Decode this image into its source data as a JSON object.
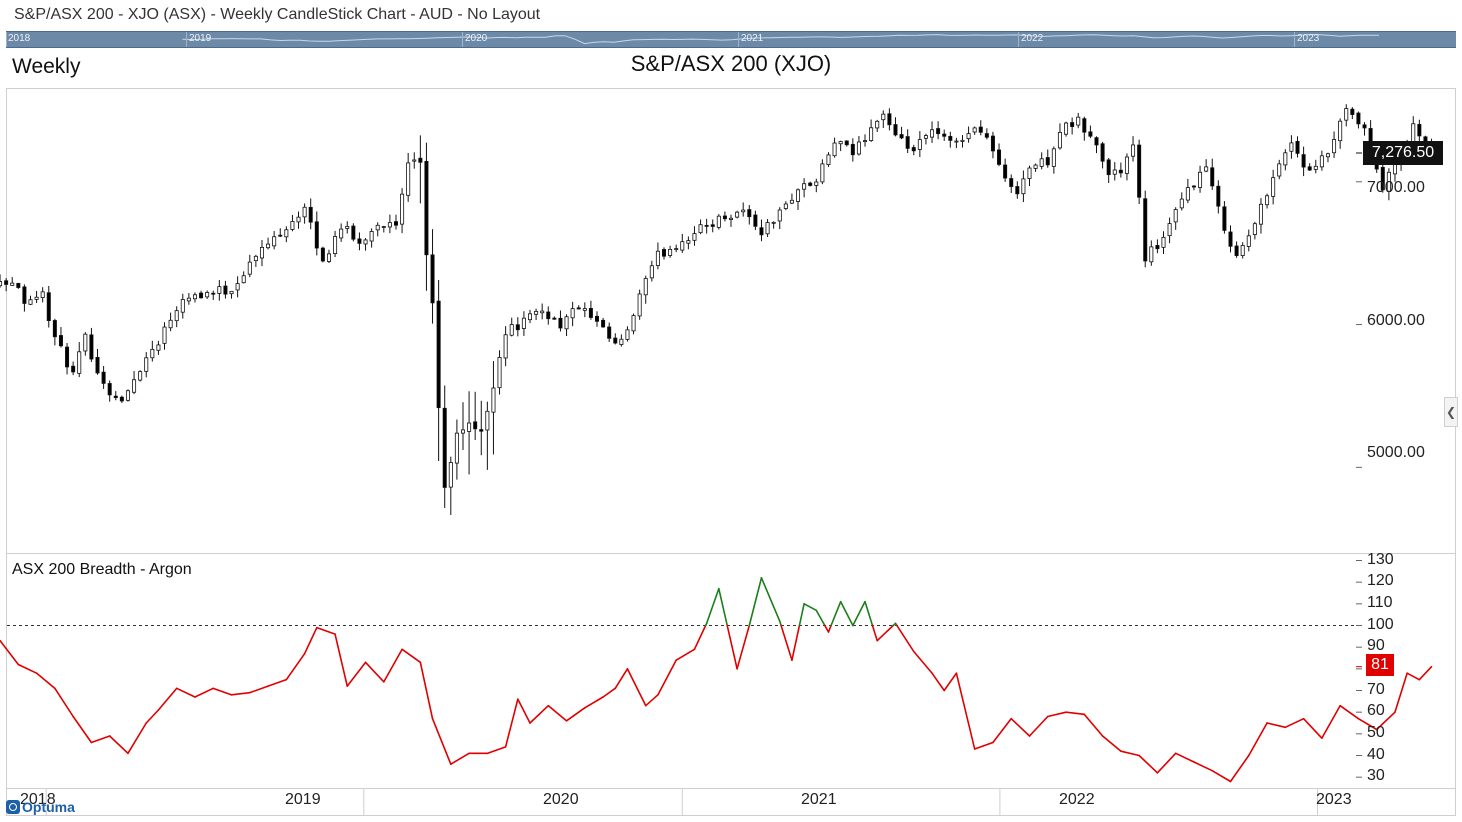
{
  "window": {
    "title": "S&P/ASX 200 - XJO (ASX) - Weekly CandleStick Chart - AUD - No Layout"
  },
  "navigator": {
    "years": [
      "2018",
      "2019",
      "2020",
      "2021",
      "2022",
      "2023"
    ]
  },
  "main_panel": {
    "period_label": "Weekly",
    "title": "S&P/ASX 200 (XJO)",
    "last_price_label": "7,276.50"
  },
  "indicator_panel": {
    "title": "ASX 200 Breadth - Argon",
    "last_value_label": "81"
  },
  "x_axis": {
    "labels": [
      "2018",
      "2019",
      "2020",
      "2021",
      "2022",
      "2023"
    ]
  },
  "logo": {
    "text": "Optuma"
  },
  "colors": {
    "above_threshold": "#1a7f1a",
    "below_threshold": "#e00000",
    "candle_up": "#ffffff",
    "candle_down": "#000000",
    "price_tag": "#111111",
    "value_tag": "#e00000"
  },
  "chart_data": [
    {
      "type": "candlestick",
      "title": "S&P/ASX 200 (XJO)",
      "period": "Weekly",
      "y_ticks": [
        5000,
        6000,
        7000
      ],
      "y_tick_labels": [
        "5000.00",
        "6000.00",
        "7000.00"
      ],
      "ylim": [
        4400,
        7650
      ],
      "xlim": [
        "2018-09-01",
        "2023-02-28"
      ],
      "last_value": 7276.5,
      "close_anchors": [
        [
          "2018-09-07",
          6110
        ],
        [
          "2018-09-28",
          6000
        ],
        [
          "2018-10-19",
          6230
        ],
        [
          "2018-11-23",
          6320
        ],
        [
          "2018-12-07",
          6180
        ],
        [
          "2018-12-28",
          6210
        ],
        [
          "2019-01-11",
          5900
        ],
        [
          "2019-02-01",
          5650
        ],
        [
          "2019-02-15",
          5900
        ],
        [
          "2019-03-08",
          5580
        ],
        [
          "2019-03-29",
          5450
        ],
        [
          "2019-04-19",
          5700
        ],
        [
          "2019-05-10",
          5890
        ],
        [
          "2019-06-07",
          6200
        ],
        [
          "2019-07-05",
          6220
        ],
        [
          "2019-08-02",
          6250
        ],
        [
          "2019-08-30",
          6480
        ],
        [
          "2019-09-27",
          6650
        ],
        [
          "2019-10-25",
          6810
        ],
        [
          "2019-11-15",
          6430
        ],
        [
          "2019-12-06",
          6700
        ],
        [
          "2019-12-27",
          6560
        ],
        [
          "2020-01-17",
          6720
        ],
        [
          "2020-02-07",
          6680
        ],
        [
          "2020-02-21",
          7100
        ],
        [
          "2020-03-06",
          7150
        ],
        [
          "2020-03-13",
          6500
        ],
        [
          "2020-03-20",
          6100
        ],
        [
          "2020-03-27",
          5450
        ],
        [
          "2020-04-03",
          4810
        ],
        [
          "2020-04-17",
          5200
        ],
        [
          "2020-05-01",
          5350
        ],
        [
          "2020-05-15",
          5200
        ],
        [
          "2020-05-29",
          5620
        ],
        [
          "2020-06-12",
          5950
        ],
        [
          "2020-07-03",
          6020
        ],
        [
          "2020-07-24",
          6100
        ],
        [
          "2020-08-14",
          6000
        ],
        [
          "2020-09-04",
          6130
        ],
        [
          "2020-09-25",
          6000
        ],
        [
          "2020-10-16",
          5850
        ],
        [
          "2020-10-30",
          5930
        ],
        [
          "2020-11-13",
          6210
        ],
        [
          "2020-12-04",
          6480
        ],
        [
          "2020-12-25",
          6560
        ],
        [
          "2021-01-22",
          6670
        ],
        [
          "2021-02-19",
          6760
        ],
        [
          "2021-03-12",
          6800
        ],
        [
          "2021-04-02",
          6650
        ],
        [
          "2021-04-23",
          6780
        ],
        [
          "2021-05-14",
          6950
        ],
        [
          "2021-06-04",
          7000
        ],
        [
          "2021-06-25",
          7280
        ],
        [
          "2021-07-16",
          7200
        ],
        [
          "2021-08-06",
          7380
        ],
        [
          "2021-08-20",
          7480
        ],
        [
          "2021-09-03",
          7300
        ],
        [
          "2021-09-24",
          7220
        ],
        [
          "2021-10-15",
          7350
        ],
        [
          "2021-11-05",
          7270
        ],
        [
          "2021-11-26",
          7340
        ],
        [
          "2021-12-10",
          7380
        ],
        [
          "2021-12-24",
          7230
        ],
        [
          "2022-01-07",
          7000
        ],
        [
          "2022-01-21",
          6950
        ],
        [
          "2022-02-04",
          7100
        ],
        [
          "2022-02-25",
          7150
        ],
        [
          "2022-03-11",
          7360
        ],
        [
          "2022-04-01",
          7420
        ],
        [
          "2022-04-22",
          7250
        ],
        [
          "2022-05-06",
          7050
        ],
        [
          "2022-05-20",
          7080
        ],
        [
          "2022-06-03",
          7240
        ],
        [
          "2022-06-17",
          6480
        ],
        [
          "2022-07-08",
          6600
        ],
        [
          "2022-08-05",
          6950
        ],
        [
          "2022-08-26",
          7100
        ],
        [
          "2022-09-09",
          6800
        ],
        [
          "2022-09-30",
          6470
        ],
        [
          "2022-10-21",
          6700
        ],
        [
          "2022-11-11",
          7050
        ],
        [
          "2022-12-02",
          7280
        ],
        [
          "2022-12-23",
          7050
        ],
        [
          "2023-01-13",
          7200
        ],
        [
          "2023-02-03",
          7490
        ],
        [
          "2023-02-24",
          7360
        ],
        [
          "2023-03-17",
          6960
        ],
        [
          "2023-04-07",
          7200
        ],
        [
          "2023-04-21",
          7380
        ],
        [
          "2023-05-05",
          7240
        ],
        [
          "2023-05-12",
          7276.5
        ]
      ]
    },
    {
      "type": "line",
      "title": "ASX 200 Breadth - Argon",
      "y_ticks": [
        30,
        40,
        50,
        60,
        70,
        80,
        90,
        100,
        110,
        120,
        130
      ],
      "ylim": [
        25,
        133
      ],
      "threshold": 100,
      "last_value": 81,
      "points": [
        [
          "2018-09-07",
          93
        ],
        [
          "2018-09-21",
          78
        ],
        [
          "2018-10-12",
          93
        ],
        [
          "2018-10-26",
          88
        ],
        [
          "2018-11-09",
          93
        ],
        [
          "2018-11-30",
          82
        ],
        [
          "2018-12-21",
          78
        ],
        [
          "2019-01-11",
          71
        ],
        [
          "2019-02-01",
          58
        ],
        [
          "2019-02-22",
          46
        ],
        [
          "2019-03-15",
          49
        ],
        [
          "2019-04-05",
          41
        ],
        [
          "2019-04-26",
          55
        ],
        [
          "2019-05-10",
          61
        ],
        [
          "2019-05-31",
          71
        ],
        [
          "2019-06-21",
          67
        ],
        [
          "2019-07-12",
          71
        ],
        [
          "2019-08-02",
          68
        ],
        [
          "2019-08-23",
          69
        ],
        [
          "2019-09-13",
          72
        ],
        [
          "2019-10-04",
          75
        ],
        [
          "2019-10-25",
          87
        ],
        [
          "2019-11-08",
          99
        ],
        [
          "2019-11-29",
          96
        ],
        [
          "2019-12-13",
          72
        ],
        [
          "2020-01-03",
          83
        ],
        [
          "2020-01-24",
          74
        ],
        [
          "2020-02-14",
          89
        ],
        [
          "2020-03-06",
          83
        ],
        [
          "2020-03-20",
          57
        ],
        [
          "2020-04-10",
          36
        ],
        [
          "2020-05-01",
          41
        ],
        [
          "2020-05-22",
          41
        ],
        [
          "2020-06-12",
          44
        ],
        [
          "2020-06-26",
          66
        ],
        [
          "2020-07-10",
          55
        ],
        [
          "2020-07-31",
          63
        ],
        [
          "2020-08-21",
          56
        ],
        [
          "2020-09-11",
          62
        ],
        [
          "2020-10-02",
          67
        ],
        [
          "2020-10-16",
          71
        ],
        [
          "2020-10-30",
          80
        ],
        [
          "2020-11-20",
          63
        ],
        [
          "2020-12-04",
          68
        ],
        [
          "2020-12-25",
          84
        ],
        [
          "2021-01-15",
          89
        ],
        [
          "2021-01-29",
          101
        ],
        [
          "2021-02-12",
          117
        ],
        [
          "2021-03-05",
          80
        ],
        [
          "2021-03-19",
          100
        ],
        [
          "2021-04-02",
          122
        ],
        [
          "2021-04-23",
          102
        ],
        [
          "2021-05-07",
          84
        ],
        [
          "2021-05-21",
          110
        ],
        [
          "2021-06-04",
          107
        ],
        [
          "2021-06-18",
          97
        ],
        [
          "2021-07-02",
          111
        ],
        [
          "2021-07-16",
          100
        ],
        [
          "2021-07-30",
          111
        ],
        [
          "2021-08-13",
          93
        ],
        [
          "2021-09-03",
          101
        ],
        [
          "2021-09-24",
          88
        ],
        [
          "2021-10-15",
          78
        ],
        [
          "2021-10-29",
          70
        ],
        [
          "2021-11-12",
          78
        ],
        [
          "2021-12-03",
          43
        ],
        [
          "2021-12-24",
          46
        ],
        [
          "2022-01-14",
          57
        ],
        [
          "2022-02-04",
          49
        ],
        [
          "2022-02-25",
          58
        ],
        [
          "2022-03-18",
          60
        ],
        [
          "2022-04-08",
          59
        ],
        [
          "2022-04-29",
          49
        ],
        [
          "2022-05-20",
          42
        ],
        [
          "2022-06-10",
          40
        ],
        [
          "2022-07-01",
          32
        ],
        [
          "2022-07-22",
          41
        ],
        [
          "2022-08-12",
          37
        ],
        [
          "2022-09-02",
          33
        ],
        [
          "2022-09-23",
          28
        ],
        [
          "2022-10-14",
          40
        ],
        [
          "2022-11-04",
          55
        ],
        [
          "2022-11-25",
          53
        ],
        [
          "2022-12-16",
          57
        ],
        [
          "2023-01-06",
          48
        ],
        [
          "2023-01-27",
          63
        ],
        [
          "2023-02-17",
          57
        ],
        [
          "2023-03-10",
          52
        ],
        [
          "2023-03-31",
          60
        ],
        [
          "2023-04-14",
          78
        ],
        [
          "2023-04-28",
          75
        ],
        [
          "2023-05-12",
          81
        ]
      ]
    }
  ]
}
